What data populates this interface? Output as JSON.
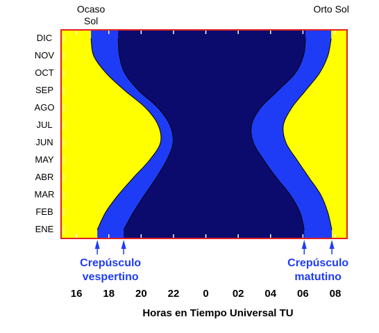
{
  "chart_data": {
    "type": "band",
    "categories": [
      "ENE",
      "FEB",
      "MAR",
      "ABR",
      "MAY",
      "JUN",
      "JUL",
      "AGO",
      "SEP",
      "OCT",
      "NOV",
      "DIC"
    ],
    "series": [
      {
        "name": "Ocaso Sol",
        "color": "#000000",
        "values": [
          17.29,
          17.8,
          18.58,
          19.52,
          20.51,
          21.19,
          21.06,
          20.29,
          19.0,
          17.85,
          17.07,
          16.9
        ]
      },
      {
        "color": "#1e3cf5",
        "values": [
          18.92,
          19.52,
          20.21,
          20.94,
          21.58,
          21.97,
          21.79,
          21.06,
          19.86,
          19.0,
          18.66,
          18.58
        ]
      },
      {
        "color": "#1e3cf5",
        "values": [
          30.08,
          29.82,
          29.22,
          28.36,
          27.59,
          26.94,
          26.82,
          27.37,
          28.45,
          29.52,
          30.03,
          30.16
        ]
      },
      {
        "name": "Orto Sol",
        "color": "#000000",
        "values": [
          31.79,
          31.54,
          31.11,
          30.38,
          29.65,
          28.96,
          28.79,
          29.3,
          30.16,
          31.02,
          31.54,
          31.75
        ]
      }
    ],
    "band_colors": [
      "#ffff00",
      "#1e3cf5",
      "#0b0b6e"
    ],
    "frame_color": "#e02020",
    "annotations": [
      {
        "text": "Crepúsculo vespertino",
        "color": "#1e3cf5"
      },
      {
        "text": "Crepúsculo matutino",
        "color": "#1e3cf5"
      }
    ],
    "xlabel": "Horas en Tiempo Universal TU",
    "xlim": [
      15.05,
      32.73
    ],
    "xticks": [
      16,
      18,
      20,
      22,
      {
        "value": 24,
        "label": "0"
      },
      {
        "value": 26,
        "label": "02"
      },
      {
        "value": 28,
        "label": "04"
      },
      {
        "value": 30,
        "label": "06"
      },
      {
        "value": 32,
        "label": "08"
      }
    ]
  }
}
